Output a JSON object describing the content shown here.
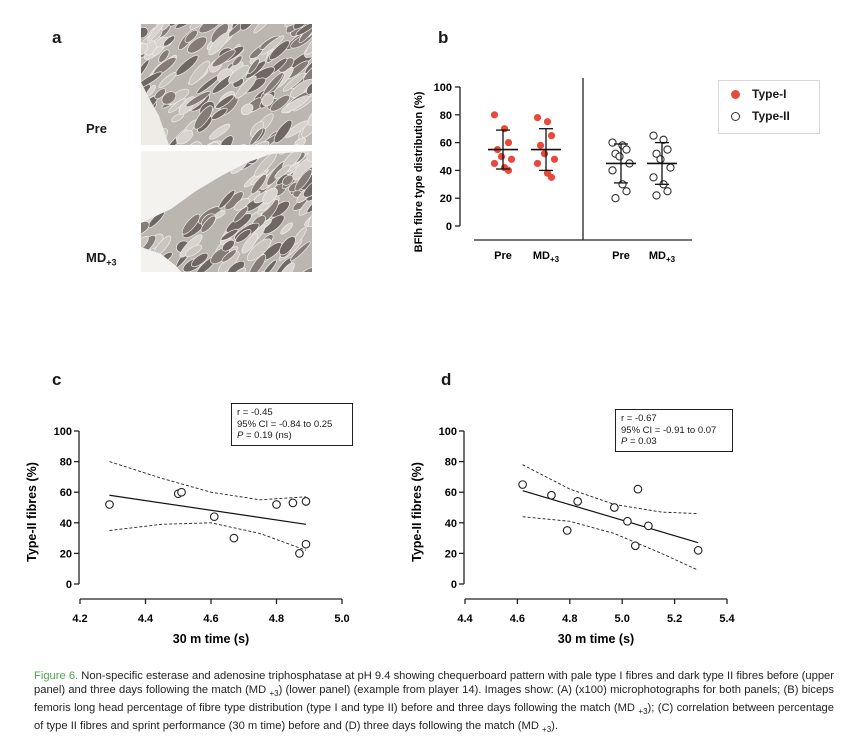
{
  "panels": {
    "a": {
      "letter": "a",
      "rows": [
        {
          "label": "Pre"
        },
        {
          "label": "MD",
          "sub": "+3"
        }
      ]
    },
    "b": {
      "letter": "b",
      "y_label": "BFlh fibre type distribution (%)",
      "y_ticks": [
        "0",
        "20",
        "40",
        "60",
        "80",
        "100"
      ],
      "x_labels": [
        {
          "label": "Pre",
          "sub": ""
        },
        {
          "label": "MD",
          "sub": "+3"
        },
        {
          "label": "Pre",
          "sub": ""
        },
        {
          "label": "MD",
          "sub": "+3"
        }
      ],
      "legend": [
        {
          "label": "Type-I",
          "color": "#e8493a",
          "filled": true
        },
        {
          "label": "Type-II",
          "color": "#333333",
          "filled": false
        }
      ]
    },
    "c": {
      "letter": "c",
      "stats": {
        "r": "r = -0.45",
        "ci": "95% CI = -0.84 to 0.25",
        "p_label": "P",
        "p_value": " = 0.19 (ns)"
      }
    },
    "d": {
      "letter": "d",
      "stats": {
        "r": "r = -0.67",
        "ci": "95% CI = -0.91 to 0.07",
        "p_label": "P",
        "p_value": " = 0.03"
      }
    }
  },
  "chart_data": [
    {
      "id": "b",
      "type": "scatter",
      "title": "",
      "ylabel": "BFlh fibre type distribution (%)",
      "ylim": [
        0,
        100
      ],
      "categories": [
        "Pre",
        "MD+3",
        "Pre",
        "MD+3"
      ],
      "series": [
        {
          "name": "Type-I Pre",
          "group": "Type-I",
          "category_index": 0,
          "mean": 55,
          "sd_low": 41,
          "sd_high": 69,
          "values": [
            80,
            70,
            60,
            55,
            50,
            48,
            45,
            42,
            40
          ]
        },
        {
          "name": "Type-I MD+3",
          "group": "Type-I",
          "category_index": 1,
          "mean": 55,
          "sd_low": 40,
          "sd_high": 70,
          "values": [
            78,
            75,
            65,
            58,
            52,
            48,
            45,
            38,
            35
          ]
        },
        {
          "name": "Type-II Pre",
          "group": "Type-II",
          "category_index": 2,
          "mean": 45,
          "sd_low": 31,
          "sd_high": 59,
          "values": [
            60,
            58,
            55,
            52,
            50,
            45,
            40,
            30,
            25,
            20
          ]
        },
        {
          "name": "Type-II MD+3",
          "group": "Type-II",
          "category_index": 3,
          "mean": 45,
          "sd_low": 30,
          "sd_high": 60,
          "values": [
            65,
            62,
            55,
            52,
            48,
            42,
            35,
            30,
            25,
            22
          ]
        }
      ]
    },
    {
      "id": "c",
      "type": "scatter",
      "xlabel": "30 m time (s)",
      "ylabel": "Type-II fibres (%)",
      "xlim": [
        4.2,
        5.0
      ],
      "ylim": [
        0,
        100
      ],
      "x_ticks": [
        "4.2",
        "4.4",
        "4.6",
        "4.8",
        "5.0"
      ],
      "y_ticks": [
        "0",
        "20",
        "40",
        "60",
        "80",
        "100"
      ],
      "points": [
        {
          "x": 4.29,
          "y": 52
        },
        {
          "x": 4.5,
          "y": 59
        },
        {
          "x": 4.51,
          "y": 60
        },
        {
          "x": 4.61,
          "y": 44
        },
        {
          "x": 4.67,
          "y": 30
        },
        {
          "x": 4.8,
          "y": 52
        },
        {
          "x": 4.85,
          "y": 53
        },
        {
          "x": 4.89,
          "y": 54
        },
        {
          "x": 4.87,
          "y": 20
        },
        {
          "x": 4.89,
          "y": 26
        }
      ],
      "regression": {
        "x": [
          4.29,
          4.89
        ],
        "y": [
          58,
          39
        ]
      },
      "ci_upper": [
        {
          "x": 4.29,
          "y": 80
        },
        {
          "x": 4.45,
          "y": 69
        },
        {
          "x": 4.6,
          "y": 60
        },
        {
          "x": 4.75,
          "y": 55
        },
        {
          "x": 4.89,
          "y": 57
        }
      ],
      "ci_lower": [
        {
          "x": 4.29,
          "y": 35
        },
        {
          "x": 4.45,
          "y": 39
        },
        {
          "x": 4.6,
          "y": 40
        },
        {
          "x": 4.75,
          "y": 33
        },
        {
          "x": 4.89,
          "y": 22
        }
      ]
    },
    {
      "id": "d",
      "type": "scatter",
      "xlabel": "30 m time (s)",
      "ylabel": "Type-II fibres (%)",
      "xlim": [
        4.4,
        5.4
      ],
      "ylim": [
        0,
        100
      ],
      "x_ticks": [
        "4.4",
        "4.6",
        "4.8",
        "5.0",
        "5.2",
        "5.4"
      ],
      "y_ticks": [
        "0",
        "20",
        "40",
        "60",
        "80",
        "100"
      ],
      "points": [
        {
          "x": 4.62,
          "y": 65
        },
        {
          "x": 4.73,
          "y": 58
        },
        {
          "x": 4.79,
          "y": 35
        },
        {
          "x": 4.83,
          "y": 54
        },
        {
          "x": 4.97,
          "y": 50
        },
        {
          "x": 5.02,
          "y": 41
        },
        {
          "x": 5.05,
          "y": 25
        },
        {
          "x": 5.06,
          "y": 62
        },
        {
          "x": 5.1,
          "y": 38
        },
        {
          "x": 5.29,
          "y": 22
        }
      ],
      "regression": {
        "x": [
          4.62,
          5.29
        ],
        "y": [
          61,
          27
        ]
      },
      "ci_upper": [
        {
          "x": 4.62,
          "y": 78
        },
        {
          "x": 4.8,
          "y": 62
        },
        {
          "x": 4.97,
          "y": 52
        },
        {
          "x": 5.15,
          "y": 47
        },
        {
          "x": 5.29,
          "y": 46
        }
      ],
      "ci_lower": [
        {
          "x": 4.62,
          "y": 44
        },
        {
          "x": 4.8,
          "y": 41
        },
        {
          "x": 4.97,
          "y": 33
        },
        {
          "x": 5.15,
          "y": 20
        },
        {
          "x": 5.29,
          "y": 9
        }
      ]
    }
  ],
  "caption": {
    "fig_label": "Figure 6.",
    "part1": " Non-specific esterase and adenosine triphosphatase at pH 9.4 showing chequerboard pattern with pale type I fibres and dark type II fibres before (upper panel) and three days following the match (MD ",
    "sub1": "+3",
    "part2": ") (lower panel) (example from player 14). Images show: (A) (x100) microphotographs for both panels; (B) biceps femoris long head percentage of fibre type distribution (type I and type II) before and three days following the match (MD ",
    "sub2": "+3",
    "part3": "); (C) correlation between percentage of type II fibres and sprint performance (30 m time) before and (D) three days following the match (MD ",
    "sub3": "+3",
    "part4": ")."
  }
}
